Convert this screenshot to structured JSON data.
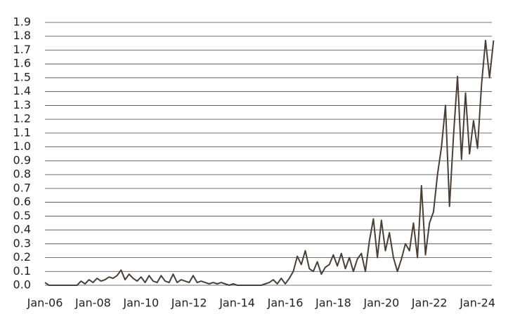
{
  "chart_data": {
    "type": "line",
    "categories": [
      "Jan-06",
      null,
      null,
      null,
      null,
      null,
      null,
      null,
      null,
      null,
      null,
      null,
      "Jan-08",
      null,
      null,
      null,
      null,
      null,
      null,
      null,
      null,
      null,
      null,
      null,
      "Jan-10",
      null,
      null,
      null,
      null,
      null,
      null,
      null,
      null,
      null,
      null,
      null,
      "Jan-12",
      null,
      null,
      null,
      null,
      null,
      null,
      null,
      null,
      null,
      null,
      null,
      "Jan-14",
      null,
      null,
      null,
      null,
      null,
      null,
      null,
      null,
      null,
      null,
      null,
      "Jan-16",
      null,
      null,
      null,
      null,
      null,
      null,
      null,
      null,
      null,
      null,
      null,
      "Jan-18",
      null,
      null,
      null,
      null,
      null,
      null,
      null,
      null,
      null,
      null,
      null,
      "Jan-20",
      null,
      null,
      null,
      null,
      null,
      null,
      null,
      null,
      null,
      null,
      null,
      "Jan-22",
      null,
      null,
      null,
      null,
      null,
      null,
      null,
      null,
      null,
      null,
      null,
      "Jan-24",
      null,
      null,
      null,
      null
    ],
    "series": [
      {
        "color": "#4a3f35",
        "values": [
          0.02,
          0,
          0,
          0,
          0,
          0,
          0,
          0,
          0,
          0.03,
          0.01,
          0.04,
          0.02,
          0.05,
          0.03,
          0.04,
          0.06,
          0.05,
          0.07,
          0.11,
          0.04,
          0.08,
          0.05,
          0.03,
          0.06,
          0.02,
          0.07,
          0.03,
          0.02,
          0.07,
          0.03,
          0.02,
          0.08,
          0.02,
          0.04,
          0.03,
          0.02,
          0.07,
          0.02,
          0.03,
          0.02,
          0.01,
          0.02,
          0.01,
          0.02,
          0.01,
          0,
          0.01,
          0,
          0,
          0,
          0,
          0,
          0,
          0,
          0.01,
          0.02,
          0.04,
          0.01,
          0.05,
          0.01,
          0.05,
          0.1,
          0.21,
          0.15,
          0.25,
          0.12,
          0.1,
          0.17,
          0.08,
          0.13,
          0.15,
          0.22,
          0.14,
          0.23,
          0.12,
          0.2,
          0.1,
          0.19,
          0.23,
          0.1,
          0.32,
          0.48,
          0.2,
          0.47,
          0.25,
          0.38,
          0.2,
          0.1,
          0.19,
          0.3,
          0.25,
          0.45,
          0.2,
          0.72,
          0.22,
          0.45,
          0.53,
          0.8,
          1.0,
          1.3,
          0.57,
          1.08,
          1.51,
          0.91,
          1.39,
          0.95,
          1.19,
          0.99,
          1.45,
          1.77,
          1.5,
          1.77
        ]
      }
    ],
    "ylim": [
      0,
      1.9
    ],
    "yticks": [
      {
        "value": 0,
        "label": "0.0"
      },
      0.1,
      0.2,
      0.3,
      0.4,
      0.5,
      0.6,
      0.7,
      0.8,
      0.9,
      {
        "value": 1,
        "label": "1.0"
      },
      1.1,
      1.2,
      1.3,
      1.4,
      1.5,
      1.6,
      1.7,
      1.8,
      1.9
    ],
    "grid": true
  }
}
